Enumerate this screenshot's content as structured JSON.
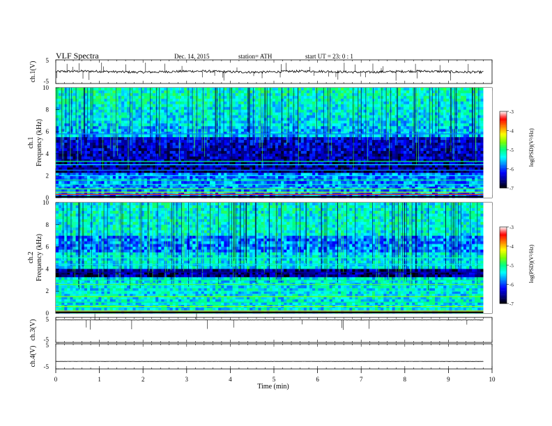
{
  "header": {
    "title": "VLF  Spectra",
    "date": "Dec. 14,  2015",
    "station": "station= ATH",
    "start": "start   UT  =    23: 0   : 1"
  },
  "chart_data": [
    {
      "type": "line",
      "panel": "ch1-waveform",
      "ylabel": "ch.1(V)",
      "ylim": [
        -5,
        5
      ],
      "yticks": [
        "5",
        "-5"
      ],
      "baseline": 0,
      "description_level": "noisy waveform near 0 V with spikes"
    },
    {
      "type": "heatmap",
      "panel": "ch1-spectrogram",
      "ylabel_top": "ch.1",
      "ylabel": "Frequency  (kHz)",
      "ylim": [
        0,
        10
      ],
      "yticks": [
        "0",
        "2",
        "4",
        "6",
        "8",
        "10"
      ],
      "colorbar": {
        "label": "log(PSD)(V²/Hz)",
        "range": [
          -7,
          -3
        ],
        "ticks": [
          "-3",
          "-4",
          "-5",
          "-6",
          "-7"
        ]
      },
      "bands_khz": [
        {
          "f": 0.1,
          "level": -3.0
        },
        {
          "f": 0.3,
          "level": -3.5
        },
        {
          "f": 0.5,
          "level": -4.5
        },
        {
          "f": 0.8,
          "level": -4.8
        },
        {
          "f": 1.2,
          "level": -5.2
        },
        {
          "f": 1.6,
          "level": -5.0
        },
        {
          "f": 2.0,
          "level": -5.5
        },
        {
          "f": 2.5,
          "level": -5.8
        },
        {
          "f": 3.0,
          "level": -5.5
        },
        {
          "f": 3.3,
          "level": -5.0
        },
        {
          "f": 5.8,
          "level": -5.8
        }
      ],
      "background": {
        "low": -6.6,
        "high": -5.6
      }
    },
    {
      "type": "heatmap",
      "panel": "ch2-spectrogram",
      "ylabel_top": "ch.2",
      "ylabel": "Frequency  (kHz)",
      "ylim": [
        0,
        10
      ],
      "yticks": [
        "0",
        "2",
        "4",
        "6",
        "8",
        "10"
      ],
      "colorbar": {
        "label": "log(PSD)(V²/Hz)",
        "range": [
          -7,
          -3
        ],
        "ticks": [
          "-3",
          "-4",
          "-5",
          "-6",
          "-7"
        ]
      },
      "bands_khz": [
        {
          "f": 0.2,
          "level": -4.0
        },
        {
          "f": 0.6,
          "level": -4.5
        },
        {
          "f": 1.0,
          "level": -5.0
        },
        {
          "f": 1.5,
          "level": -4.6
        },
        {
          "f": 2.0,
          "level": -5.2
        },
        {
          "f": 2.6,
          "level": -4.8
        },
        {
          "f": 3.0,
          "level": -5.0
        },
        {
          "f": 3.7,
          "level": -6.5
        },
        {
          "f": 4.4,
          "level": -5.5
        },
        {
          "f": 5.0,
          "level": -5.2
        }
      ],
      "background": {
        "low": -6.2,
        "high": -5.5
      }
    },
    {
      "type": "line",
      "panel": "ch3-waveform",
      "ylabel": "ch.3(V)",
      "ylim": [
        -5,
        5
      ],
      "yticks": [
        "5",
        "-5"
      ],
      "baseline": 4
    },
    {
      "type": "line",
      "panel": "ch4-waveform",
      "ylabel": "ch.4(V)",
      "ylim": [
        -5,
        5
      ],
      "yticks": [
        "5",
        "-5"
      ],
      "baseline": -2
    }
  ],
  "xaxis": {
    "label": "Time  (min)",
    "range": [
      0,
      10
    ],
    "ticks": [
      "0",
      "1",
      "2",
      "3",
      "4",
      "5",
      "6",
      "7",
      "8",
      "9",
      "10"
    ],
    "data_end": 9.8
  },
  "colors": {
    "colormap": [
      "#000000",
      "#00008b",
      "#0000ff",
      "#0080ff",
      "#00ffff",
      "#00ff80",
      "#80ff00",
      "#ffff00",
      "#ff8000",
      "#ff0000",
      "#ffffff"
    ]
  }
}
